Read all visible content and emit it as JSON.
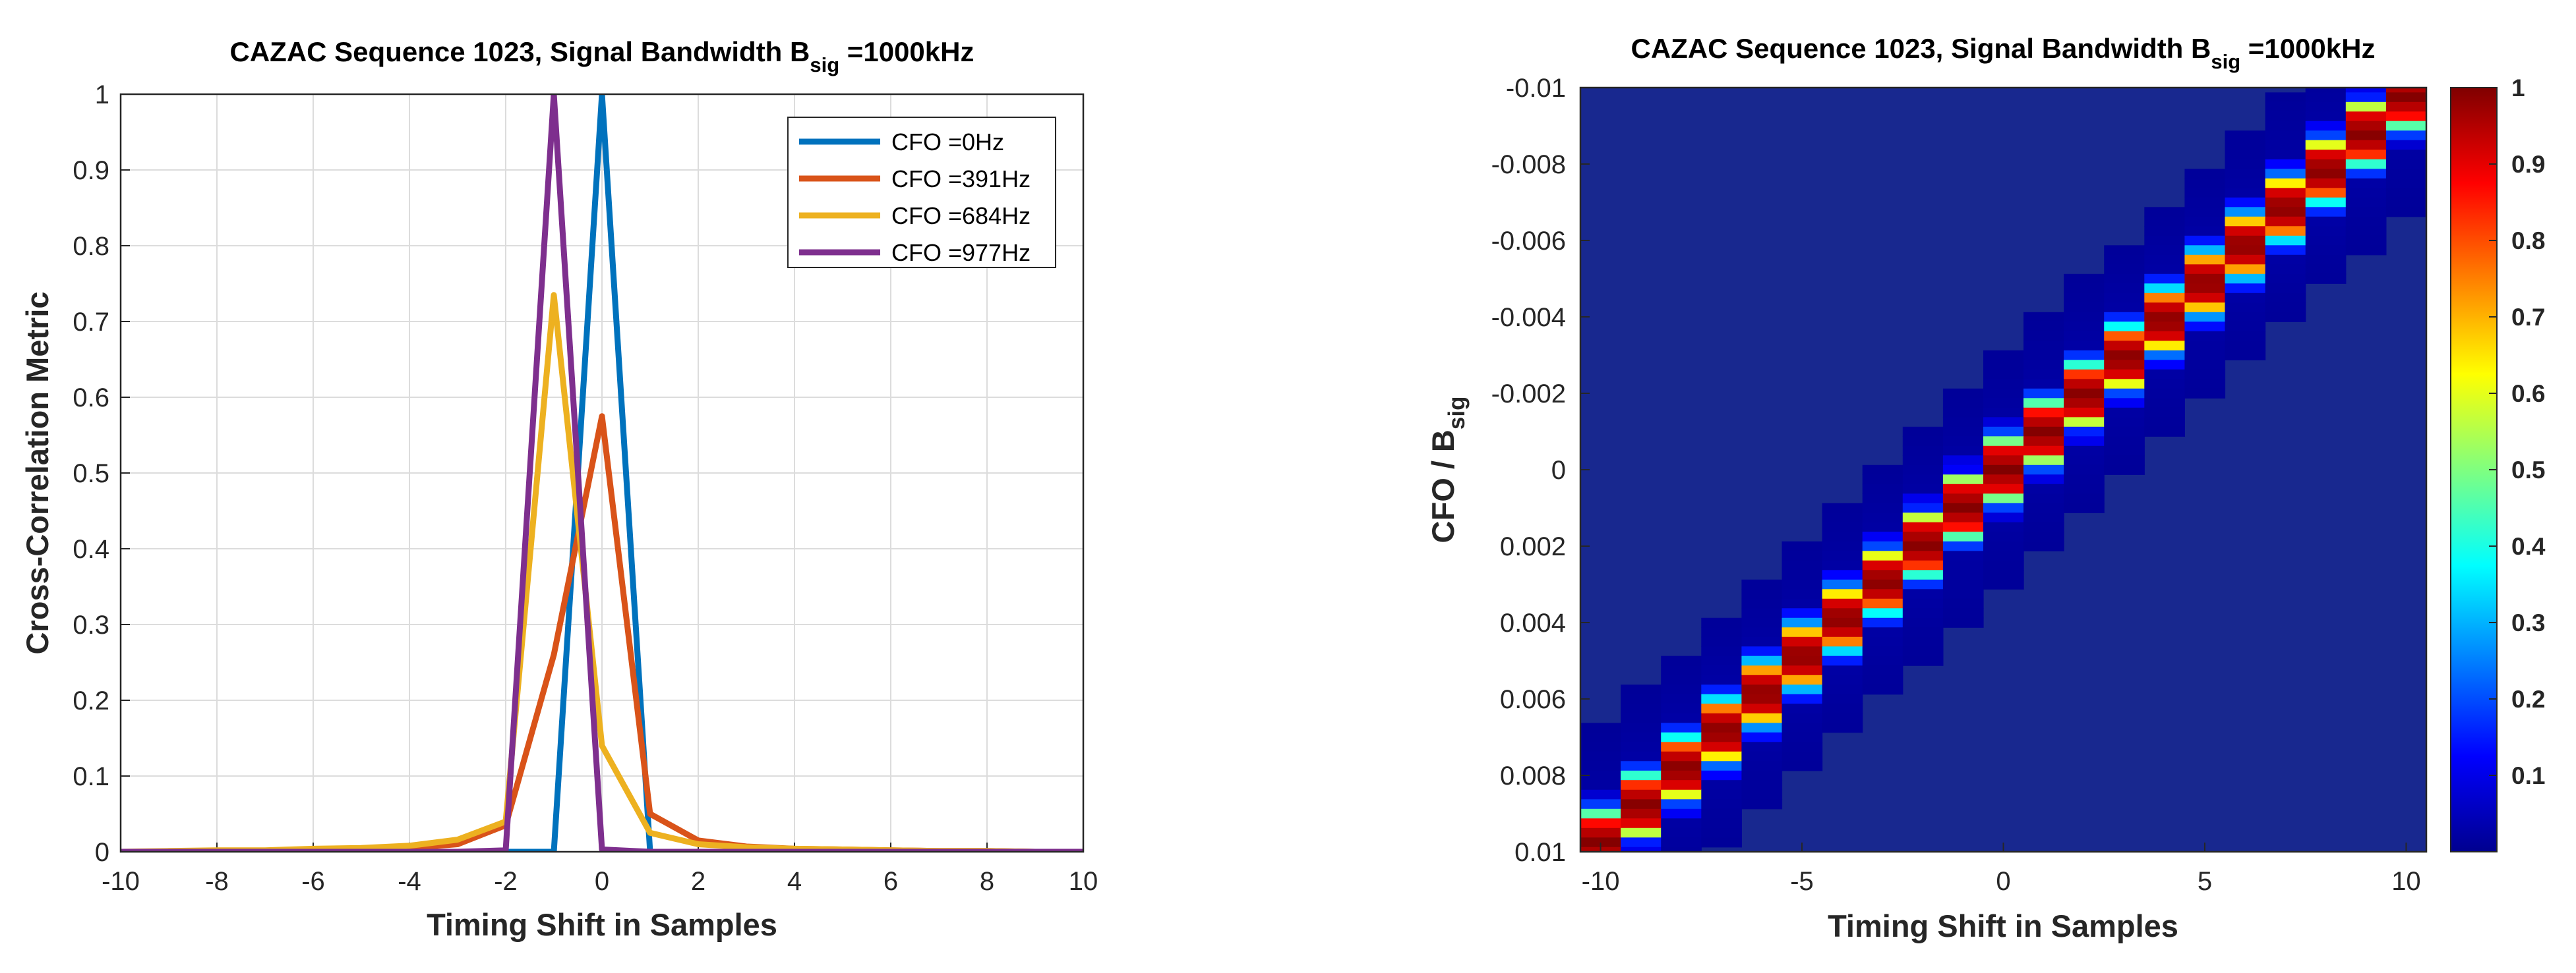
{
  "chart_data": [
    {
      "type": "line",
      "title_main": "CAZAC Sequence 1023, Signal Bandwidth B",
      "title_sub": "sig",
      "title_tail": " =1000kHz",
      "xlabel": "Timing Shift in Samples",
      "ylabel": "Cross-Correlation Metric",
      "xlim": [
        -10,
        10
      ],
      "ylim": [
        0,
        1
      ],
      "xticks": [
        -10,
        -8,
        -6,
        -4,
        -2,
        0,
        2,
        4,
        6,
        8,
        10
      ],
      "yticks": [
        0,
        0.1,
        0.2,
        0.3,
        0.4,
        0.5,
        0.6,
        0.7,
        0.8,
        0.9,
        1
      ],
      "grid": true,
      "legend_position": "top-right",
      "x": [
        -10,
        -9,
        -8,
        -7,
        -6,
        -5,
        -4,
        -3,
        -2,
        -1,
        0,
        1,
        2,
        3,
        4,
        5,
        6,
        7,
        8,
        9,
        10
      ],
      "series": [
        {
          "name": "CFO =0Hz",
          "color": "#0072BD",
          "values": [
            0,
            0,
            0,
            0,
            0,
            0,
            0,
            0,
            0,
            0,
            1,
            0,
            0,
            0,
            0,
            0,
            0,
            0,
            0,
            0,
            0
          ]
        },
        {
          "name": "CFO =391Hz",
          "color": "#D95319",
          "values": [
            0,
            0,
            0.001,
            0.001,
            0.002,
            0.003,
            0.005,
            0.01,
            0.035,
            0.26,
            0.575,
            0.05,
            0.015,
            0.007,
            0.004,
            0.003,
            0.002,
            0.001,
            0.001,
            0,
            0
          ]
        },
        {
          "name": "CFO =684Hz",
          "color": "#EDB120",
          "values": [
            0,
            0.001,
            0.002,
            0.002,
            0.004,
            0.005,
            0.008,
            0.016,
            0.04,
            0.735,
            0.14,
            0.025,
            0.01,
            0.006,
            0.004,
            0.003,
            0.002,
            0.001,
            0.001,
            0,
            0
          ]
        },
        {
          "name": "CFO =977Hz",
          "color": "#7E2F8E",
          "values": [
            0,
            0,
            0,
            0,
            0,
            0,
            0,
            0,
            0.002,
            1,
            0.003,
            0,
            0,
            0,
            0,
            0,
            0,
            0,
            0,
            0,
            0
          ]
        }
      ]
    },
    {
      "type": "heatmap",
      "title_main": "CAZAC Sequence 1023, Signal Bandwidth B",
      "title_sub": "sig",
      "title_tail": " =1000kHz",
      "xlabel": "Timing Shift in Samples",
      "ylabel_main": "CFO / B",
      "ylabel_sub": "sig",
      "xlim": [
        -10.5,
        10.5
      ],
      "ylim": [
        -0.01,
        0.01
      ],
      "y_reversed": true,
      "xticks": [
        -10,
        -5,
        0,
        5,
        10
      ],
      "yticks": [
        -0.01,
        -0.008,
        -0.006,
        -0.004,
        -0.002,
        0,
        0.002,
        0.004,
        0.006,
        0.008,
        0.01
      ],
      "ytick_labels": [
        "-0.01",
        "-0.008",
        "-0.006",
        "-0.004",
        "-0.002",
        "0",
        "0.002",
        "0.004",
        "0.006",
        "0.008",
        "0.01"
      ],
      "colorbar_ticks": [
        0.1,
        0.2,
        0.3,
        0.4,
        0.5,
        0.6,
        0.7,
        0.8,
        0.9,
        1
      ],
      "colorbar_range": [
        0,
        1
      ],
      "colormap": "jet",
      "background_value": 0.02,
      "peak_line": {
        "cfo_at_shift_-10": 0.00977,
        "cfo_per_sample": -0.000977
      },
      "cfo_rows": 81,
      "shift_columns": 21
    }
  ]
}
